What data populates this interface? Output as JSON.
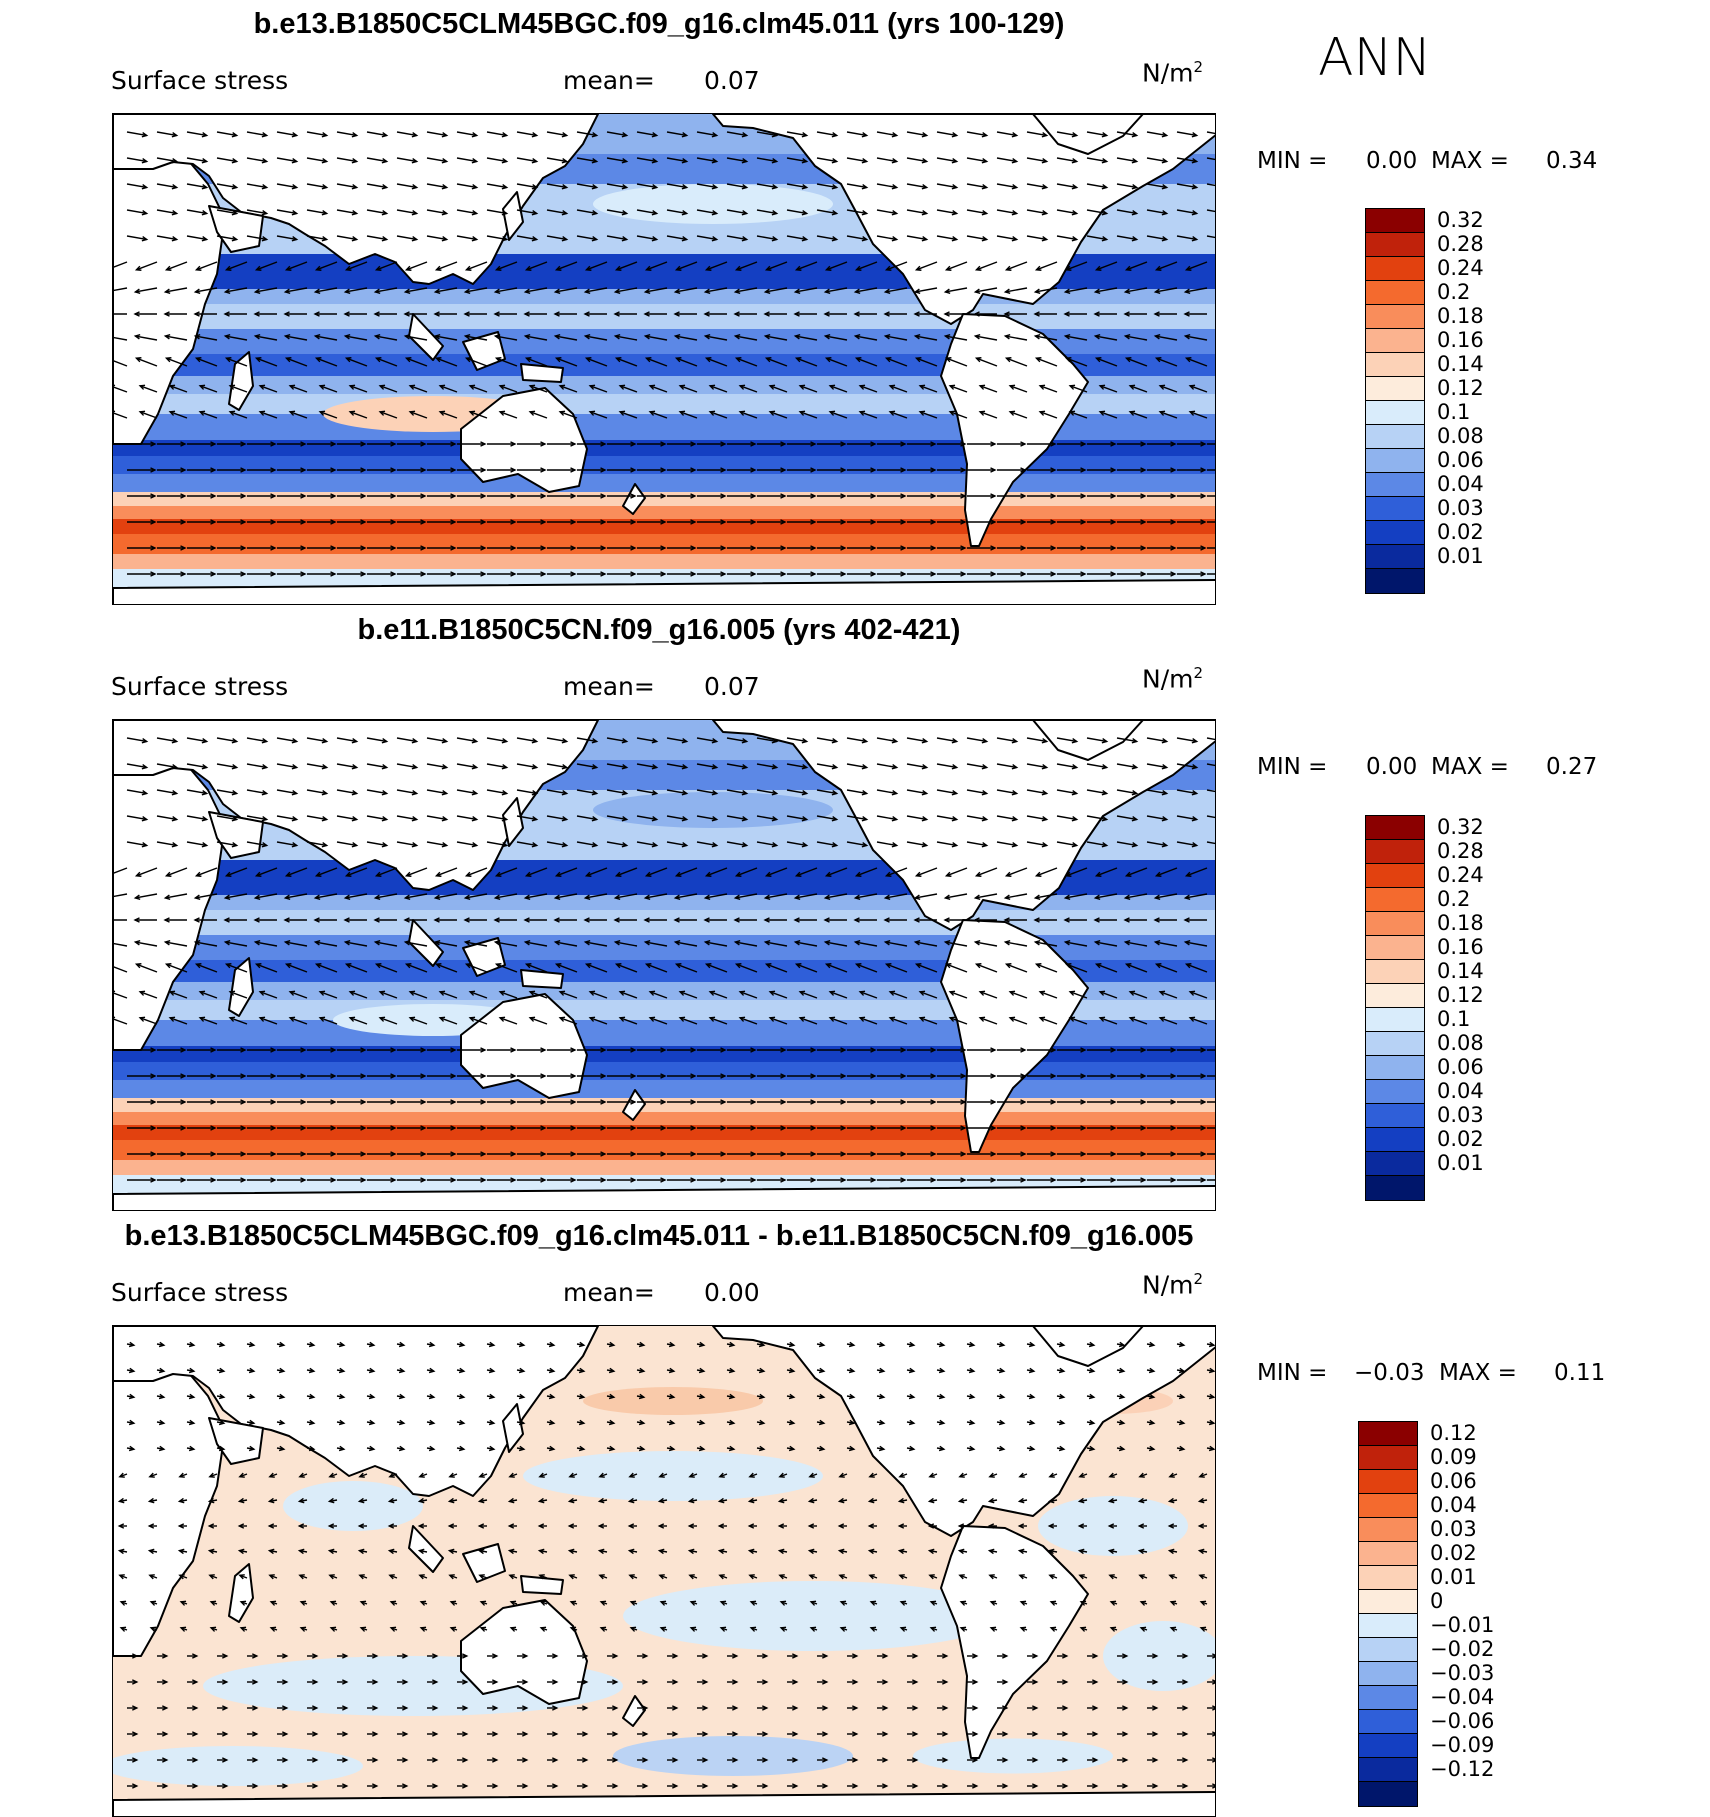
{
  "season": "ANN",
  "units_base": "N/m",
  "units_exp": "2",
  "panels": [
    {
      "title": "b.e13.B1850C5CLM45BGC.f09_g16.clm45.011 (yrs 100-129)",
      "variable": "Surface stress",
      "mean_label": "mean=",
      "mean_value": "0.07",
      "min_label": "MIN =",
      "min_value": "0.00",
      "max_label": "MAX =",
      "max_value": "0.34",
      "colorbar_levels": [
        "0.32",
        "0.28",
        "0.24",
        "0.2",
        "0.18",
        "0.16",
        "0.14",
        "0.12",
        "0.1",
        "0.08",
        "0.06",
        "0.04",
        "0.03",
        "0.02",
        "0.01"
      ],
      "colorbar_colors": [
        "#8b0000",
        "#c0220b",
        "#e2410f",
        "#f46a2e",
        "#f98d5b",
        "#fbb38f",
        "#fcd2b7",
        "#fdecdc",
        "#d9ecfb",
        "#b7d2f5",
        "#8fb3ee",
        "#5c88e6",
        "#2f5fd9",
        "#143fc2",
        "#0a2a9e",
        "#00166b"
      ]
    },
    {
      "title": "b.e11.B1850C5CN.f09_g16.005 (yrs 402-421)",
      "variable": "Surface stress",
      "mean_label": "mean=",
      "mean_value": "0.07",
      "min_label": "MIN =",
      "min_value": "0.00",
      "max_label": "MAX =",
      "max_value": "0.27",
      "colorbar_levels": [
        "0.32",
        "0.28",
        "0.24",
        "0.2",
        "0.18",
        "0.16",
        "0.14",
        "0.12",
        "0.1",
        "0.08",
        "0.06",
        "0.04",
        "0.03",
        "0.02",
        "0.01"
      ],
      "colorbar_colors": [
        "#8b0000",
        "#c0220b",
        "#e2410f",
        "#f46a2e",
        "#f98d5b",
        "#fbb38f",
        "#fcd2b7",
        "#fdecdc",
        "#d9ecfb",
        "#b7d2f5",
        "#8fb3ee",
        "#5c88e6",
        "#2f5fd9",
        "#143fc2",
        "#0a2a9e",
        "#00166b"
      ]
    },
    {
      "title": "b.e13.B1850C5CLM45BGC.f09_g16.clm45.011 - b.e11.B1850C5CN.f09_g16.005",
      "variable": "Surface stress",
      "mean_label": "mean=",
      "mean_value": "0.00",
      "min_label": "MIN =",
      "min_value": "−0.03",
      "max_label": "MAX =",
      "max_value": "0.11",
      "colorbar_levels": [
        "0.12",
        "0.09",
        "0.06",
        "0.04",
        "0.03",
        "0.02",
        "0.01",
        "0",
        "−0.01",
        "−0.02",
        "−0.03",
        "−0.04",
        "−0.06",
        "−0.09",
        "−0.12"
      ],
      "colorbar_colors": [
        "#8b0000",
        "#c0220b",
        "#e2410f",
        "#f46a2e",
        "#f98d5b",
        "#fbb38f",
        "#fcd2b7",
        "#fdecdc",
        "#d9ecfb",
        "#b7d2f5",
        "#8fb3ee",
        "#5c88e6",
        "#2f5fd9",
        "#143fc2",
        "#0a2a9e",
        "#00166b"
      ]
    }
  ]
}
